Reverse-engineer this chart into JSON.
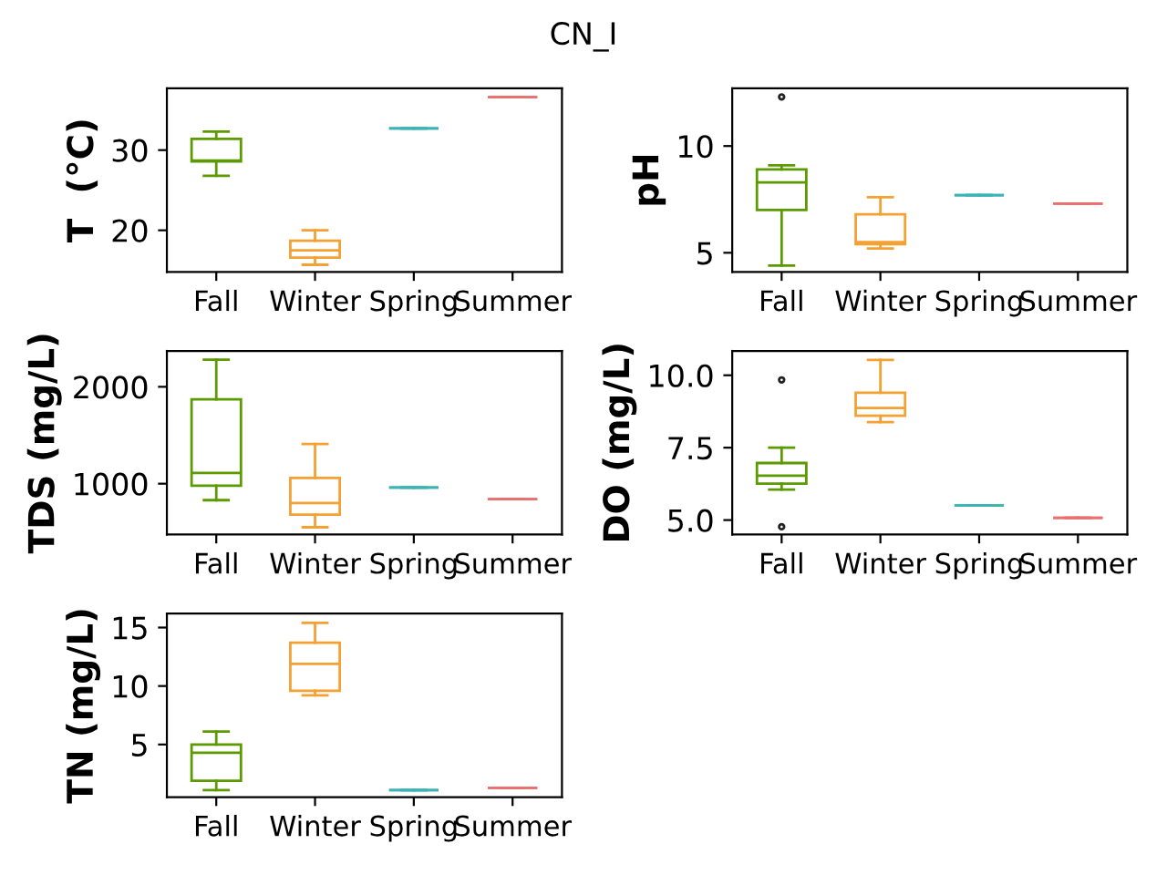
{
  "chart_data": [
    {
      "type": "box",
      "title": "CN_I",
      "ylabel": "T  (°C)",
      "categories": [
        "Fall",
        "Winter",
        "Spring",
        "Summer"
      ],
      "colors": [
        "#5b9a00",
        "#f5a033",
        "#3cb4b4",
        "#e8706f"
      ],
      "ylim": [
        14.8,
        37.7
      ],
      "yticks": [
        20,
        30
      ],
      "boxes": [
        {
          "low": 26.8,
          "q1": 28.6,
          "median": 28.7,
          "q3": 31.4,
          "high": 32.3
        },
        {
          "low": 15.7,
          "q1": 16.6,
          "median": 17.5,
          "q3": 18.7,
          "high": 20.0
        },
        {
          "low": 32.7,
          "q1": 32.7,
          "median": 32.7,
          "q3": 32.7,
          "high": 32.7
        },
        {
          "low": 36.6,
          "q1": 36.6,
          "median": 36.6,
          "q3": 36.6,
          "high": 36.6
        }
      ]
    },
    {
      "type": "box",
      "ylabel": "pH",
      "categories": [
        "Fall",
        "Winter",
        "Spring",
        "Summer"
      ],
      "colors": [
        "#5b9a00",
        "#f5a033",
        "#3cb4b4",
        "#e8706f"
      ],
      "ylim": [
        4.1,
        12.7
      ],
      "yticks": [
        5,
        10
      ],
      "boxes": [
        {
          "low": 4.4,
          "q1": 7.0,
          "median": 8.3,
          "q3": 8.9,
          "high": 9.1,
          "outliers": [
            12.3
          ]
        },
        {
          "low": 5.2,
          "q1": 5.4,
          "median": 5.5,
          "q3": 6.8,
          "high": 7.6
        },
        {
          "low": 7.7,
          "q1": 7.7,
          "median": 7.7,
          "q3": 7.7,
          "high": 7.7
        },
        {
          "low": 7.3,
          "q1": 7.3,
          "median": 7.3,
          "q3": 7.3,
          "high": 7.3
        }
      ]
    },
    {
      "type": "box",
      "ylabel": "TDS (mg/L)",
      "categories": [
        "Fall",
        "Winter",
        "Spring",
        "Summer"
      ],
      "colors": [
        "#5b9a00",
        "#f5a033",
        "#3cb4b4",
        "#e8706f"
      ],
      "ylim": [
        475,
        2370
      ],
      "yticks": [
        1000,
        2000
      ],
      "boxes": [
        {
          "low": 830,
          "q1": 980,
          "median": 1110,
          "q3": 1870,
          "high": 2280
        },
        {
          "low": 550,
          "q1": 680,
          "median": 800,
          "q3": 1060,
          "high": 1410
        },
        {
          "low": 960,
          "q1": 960,
          "median": 960,
          "q3": 960,
          "high": 960
        },
        {
          "low": 840,
          "q1": 840,
          "median": 840,
          "q3": 840,
          "high": 840
        }
      ]
    },
    {
      "type": "box",
      "ylabel": "DO (mg/L)",
      "categories": [
        "Fall",
        "Winter",
        "Spring",
        "Summer"
      ],
      "colors": [
        "#5b9a00",
        "#f5a033",
        "#3cb4b4",
        "#e8706f"
      ],
      "ylim": [
        4.5,
        10.84
      ],
      "yticks": [
        {
          "value": 5,
          "label": "5.0"
        },
        {
          "value": 7.5,
          "label": "7.5"
        },
        {
          "value": 10,
          "label": "10.0"
        }
      ],
      "boxes": [
        {
          "low": 6.05,
          "q1": 6.26,
          "median": 6.53,
          "q3": 6.97,
          "high": 7.5,
          "outliers": [
            9.84,
            4.77
          ]
        },
        {
          "low": 8.38,
          "q1": 8.6,
          "median": 8.87,
          "q3": 9.4,
          "high": 10.53
        },
        {
          "low": 5.5,
          "q1": 5.5,
          "median": 5.5,
          "q3": 5.5,
          "high": 5.5
        },
        {
          "low": 5.08,
          "q1": 5.08,
          "median": 5.08,
          "q3": 5.08,
          "high": 5.08
        }
      ]
    },
    {
      "type": "box",
      "ylabel": "TN (mg/L)",
      "categories": [
        "Fall",
        "Winter",
        "Spring",
        "Summer"
      ],
      "colors": [
        "#5b9a00",
        "#f5a033",
        "#3cb4b4",
        "#e8706f"
      ],
      "ylim": [
        0.5,
        16.2
      ],
      "yticks": [
        5,
        10,
        15
      ],
      "boxes": [
        {
          "low": 1.1,
          "q1": 1.9,
          "median": 4.3,
          "q3": 5.0,
          "high": 6.1
        },
        {
          "low": 9.2,
          "q1": 9.6,
          "median": 11.9,
          "q3": 13.7,
          "high": 15.4
        },
        {
          "low": 1.1,
          "q1": 1.1,
          "median": 1.1,
          "q3": 1.1,
          "high": 1.1
        },
        {
          "low": 1.3,
          "q1": 1.3,
          "median": 1.3,
          "q3": 1.3,
          "high": 1.3
        }
      ]
    }
  ]
}
